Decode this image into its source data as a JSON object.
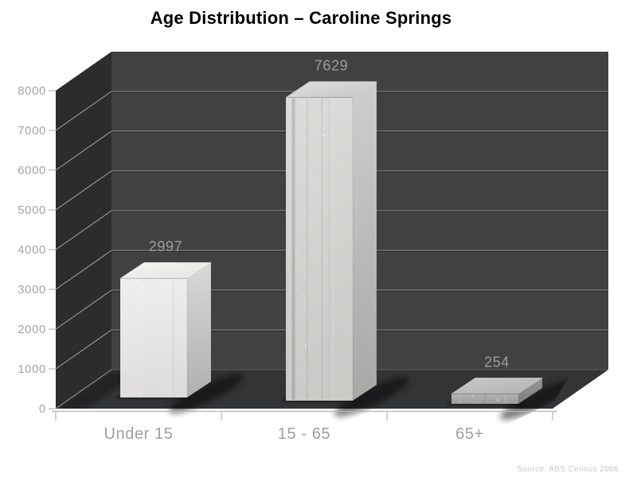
{
  "title": "Age Distribution – Caroline Springs",
  "chart_data": {
    "type": "bar",
    "projection": "3d",
    "title": "Age Distribution – Caroline Springs",
    "categories": [
      "Under 15",
      "15 - 65",
      "65+"
    ],
    "values": [
      2997,
      7629,
      254
    ],
    "xlabel": "",
    "ylabel": "",
    "ylim": [
      0,
      8000
    ],
    "yticks": [
      0,
      1000,
      2000,
      3000,
      4000,
      5000,
      6000,
      7000,
      8000
    ],
    "grid": true,
    "legend": false,
    "source": "Source: ABS Census 2006",
    "colors": {
      "background": "#ffffff",
      "back_wall": "#414141",
      "left_wall": "#2c2c2c",
      "floor": "#333436",
      "gridline_back": "#8f8f8f",
      "gridline_left": "#a6a6a6",
      "axis_line": "#b5b5b5",
      "axis_text": "#a5a5a5",
      "category_text": "#9f9f9f",
      "value_label_text": "#9d9d9d",
      "title_text": "#000000",
      "source_text": "#c9c9c9",
      "bar_light": "#efefed",
      "bar_mid": "#d3d3d1",
      "bar_dark": "#a9a9a7"
    }
  }
}
